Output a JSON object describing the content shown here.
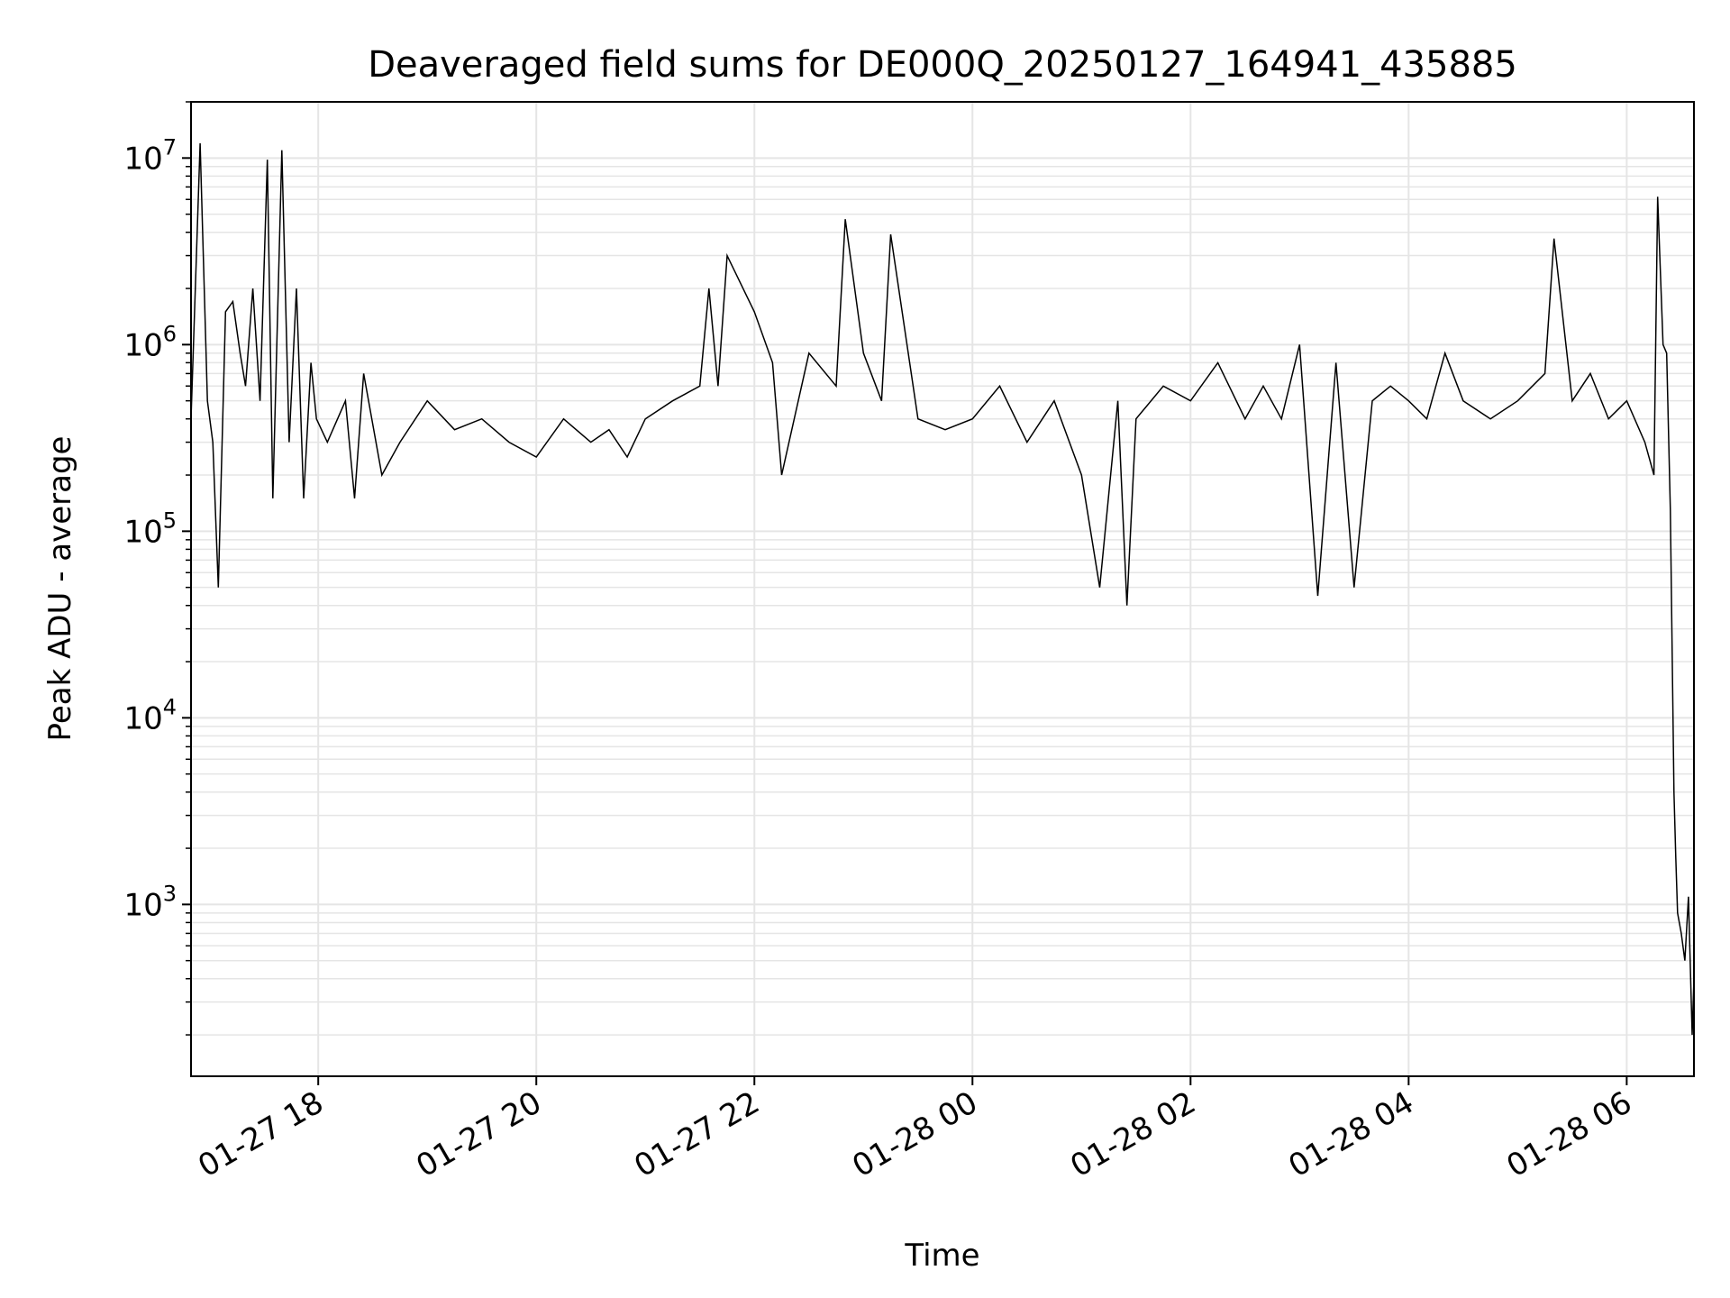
{
  "chart_data": {
    "type": "line",
    "title": "Deaveraged field sums for DE000Q_20250127_164941_435885",
    "xlabel": "Time",
    "ylabel": "Peak ADU - average",
    "yscale": "log",
    "ylim": [
      120,
      20000000
    ],
    "xlim": [
      "2025-01-27 16:50",
      "2025-01-28 06:37"
    ],
    "grid": true,
    "x_ticks": [
      {
        "value": "2025-01-27 18:00",
        "label": "01-27 18"
      },
      {
        "value": "2025-01-27 20:00",
        "label": "01-27 20"
      },
      {
        "value": "2025-01-27 22:00",
        "label": "01-27 22"
      },
      {
        "value": "2025-01-28 00:00",
        "label": "01-28 00"
      },
      {
        "value": "2025-01-28 02:00",
        "label": "01-28 02"
      },
      {
        "value": "2025-01-28 04:00",
        "label": "01-28 04"
      },
      {
        "value": "2025-01-28 06:00",
        "label": "01-28 06"
      }
    ],
    "y_ticks": [
      {
        "value": 1000,
        "base": "10",
        "exp": "3"
      },
      {
        "value": 10000,
        "base": "10",
        "exp": "4"
      },
      {
        "value": 100000,
        "base": "10",
        "exp": "5"
      },
      {
        "value": 1000000,
        "base": "10",
        "exp": "6"
      },
      {
        "value": 10000000,
        "base": "10",
        "exp": "7"
      }
    ],
    "line_color": "#000000",
    "grid_color": "#e5e5e5",
    "series": [
      {
        "x": [
          "2025-01-27 16:50",
          "2025-01-27 16:55",
          "2025-01-27 16:59",
          "2025-01-27 17:02",
          "2025-01-27 17:05",
          "2025-01-27 17:09",
          "2025-01-27 17:13",
          "2025-01-27 17:17",
          "2025-01-27 17:20",
          "2025-01-27 17:24",
          "2025-01-27 17:28",
          "2025-01-27 17:32",
          "2025-01-27 17:35",
          "2025-01-27 17:40",
          "2025-01-27 17:44",
          "2025-01-27 17:48",
          "2025-01-27 17:52",
          "2025-01-27 17:56",
          "2025-01-27 17:59",
          "2025-01-27 18:05",
          "2025-01-27 18:15",
          "2025-01-27 18:20",
          "2025-01-27 18:25",
          "2025-01-27 18:35",
          "2025-01-27 18:45",
          "2025-01-27 19:00",
          "2025-01-27 19:15",
          "2025-01-27 19:30",
          "2025-01-27 19:45",
          "2025-01-27 20:00",
          "2025-01-27 20:15",
          "2025-01-27 20:30",
          "2025-01-27 20:40",
          "2025-01-27 20:50",
          "2025-01-27 21:00",
          "2025-01-27 21:15",
          "2025-01-27 21:30",
          "2025-01-27 21:35",
          "2025-01-27 21:40",
          "2025-01-27 21:45",
          "2025-01-27 22:00",
          "2025-01-27 22:10",
          "2025-01-27 22:15",
          "2025-01-27 22:30",
          "2025-01-27 22:45",
          "2025-01-27 22:50",
          "2025-01-27 23:00",
          "2025-01-27 23:10",
          "2025-01-27 23:15",
          "2025-01-27 23:30",
          "2025-01-27 23:45",
          "2025-01-28 00:00",
          "2025-01-28 00:15",
          "2025-01-28 00:30",
          "2025-01-28 00:45",
          "2025-01-28 01:00",
          "2025-01-28 01:10",
          "2025-01-28 01:20",
          "2025-01-28 01:25",
          "2025-01-28 01:30",
          "2025-01-28 01:45",
          "2025-01-28 02:00",
          "2025-01-28 02:15",
          "2025-01-28 02:30",
          "2025-01-28 02:40",
          "2025-01-28 02:50",
          "2025-01-28 03:00",
          "2025-01-28 03:10",
          "2025-01-28 03:20",
          "2025-01-28 03:30",
          "2025-01-28 03:40",
          "2025-01-28 03:50",
          "2025-01-28 04:00",
          "2025-01-28 04:10",
          "2025-01-28 04:20",
          "2025-01-28 04:30",
          "2025-01-28 04:45",
          "2025-01-28 05:00",
          "2025-01-28 05:15",
          "2025-01-28 05:20",
          "2025-01-28 05:30",
          "2025-01-28 05:40",
          "2025-01-28 05:50",
          "2025-01-28 06:00",
          "2025-01-28 06:10",
          "2025-01-28 06:15",
          "2025-01-28 06:17",
          "2025-01-28 06:20",
          "2025-01-28 06:22",
          "2025-01-28 06:24",
          "2025-01-28 06:26",
          "2025-01-28 06:27",
          "2025-01-28 06:28",
          "2025-01-28 06:30",
          "2025-01-28 06:32",
          "2025-01-28 06:34",
          "2025-01-28 06:36",
          "2025-01-28 06:37"
        ],
        "y": [
          400000,
          12000000,
          500000,
          300000,
          50000,
          1500000,
          1700000,
          900000,
          600000,
          2000000,
          500000,
          9800000,
          150000,
          11000000,
          300000,
          2000000,
          150000,
          800000,
          400000,
          300000,
          500000,
          150000,
          700000,
          200000,
          300000,
          500000,
          350000,
          400000,
          300000,
          250000,
          400000,
          300000,
          350000,
          250000,
          400000,
          500000,
          600000,
          2000000,
          600000,
          3000000,
          1500000,
          800000,
          200000,
          900000,
          600000,
          4700000,
          900000,
          500000,
          3900000,
          400000,
          350000,
          400000,
          600000,
          300000,
          500000,
          200000,
          50000,
          500000,
          40000,
          400000,
          600000,
          500000,
          800000,
          400000,
          600000,
          400000,
          1000000,
          45000,
          800000,
          50000,
          500000,
          600000,
          500000,
          400000,
          900000,
          500000,
          400000,
          500000,
          700000,
          3700000,
          500000,
          700000,
          400000,
          500000,
          300000,
          200000,
          6200000,
          1000000,
          900000,
          130000,
          4000,
          1800,
          900,
          700,
          500,
          1100,
          200,
          400
        ]
      }
    ]
  }
}
